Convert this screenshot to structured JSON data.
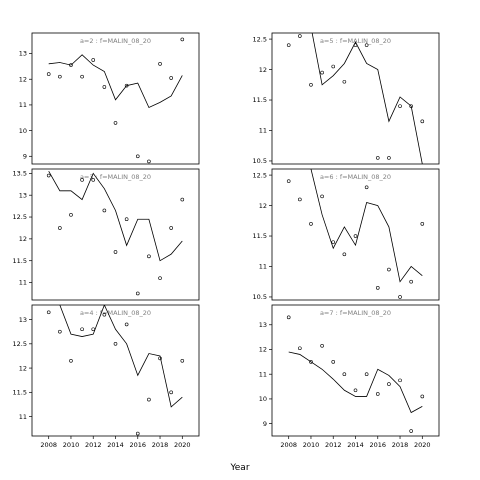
{
  "chart_data": {
    "type": "scatter",
    "xlabel": "Year",
    "ylabel": "",
    "xlim": [
      2006.5,
      2021.5
    ],
    "x_ticks": [
      2008,
      2010,
      2012,
      2014,
      2016,
      2018,
      2020
    ],
    "style": {
      "point_color": "#000000",
      "line_color": "#000000",
      "strip_text_color": "#808080",
      "background": "#ffffff"
    },
    "panels": [
      {
        "id": "a2",
        "label": "a=2 : f=MALIN_08_20",
        "ylim": [
          8.7,
          13.8
        ],
        "y_ticks": [
          9,
          10,
          11,
          12,
          13
        ],
        "show_x_ticks": false,
        "points": [
          [
            2008,
            12.2
          ],
          [
            2009,
            12.1
          ],
          [
            2010,
            12.55
          ],
          [
            2011,
            12.1
          ],
          [
            2012,
            12.75
          ],
          [
            2013,
            11.7
          ],
          [
            2014,
            10.3
          ],
          [
            2015,
            11.75
          ],
          [
            2016,
            9.0
          ],
          [
            2017,
            8.8
          ],
          [
            2018,
            12.6
          ],
          [
            2019,
            12.05
          ],
          [
            2020,
            13.55
          ]
        ],
        "line": [
          [
            2008,
            12.6
          ],
          [
            2009,
            12.65
          ],
          [
            2010,
            12.55
          ],
          [
            2011,
            12.95
          ],
          [
            2012,
            12.55
          ],
          [
            2013,
            12.3
          ],
          [
            2014,
            11.2
          ],
          [
            2015,
            11.75
          ],
          [
            2016,
            11.85
          ],
          [
            2017,
            10.9
          ],
          [
            2018,
            11.1
          ],
          [
            2019,
            11.35
          ],
          [
            2020,
            12.15
          ]
        ]
      },
      {
        "id": "a5",
        "label": "a=5 : f=MALIN_08_20",
        "ylim": [
          10.45,
          12.6
        ],
        "y_ticks": [
          10.5,
          11.0,
          11.5,
          12.0,
          12.5
        ],
        "show_x_ticks": false,
        "points": [
          [
            2008,
            12.4
          ],
          [
            2009,
            12.55
          ],
          [
            2010,
            11.75
          ],
          [
            2011,
            11.95
          ],
          [
            2012,
            12.05
          ],
          [
            2013,
            11.8
          ],
          [
            2014,
            12.4
          ],
          [
            2015,
            12.4
          ],
          [
            2016,
            10.55
          ],
          [
            2017,
            10.55
          ],
          [
            2018,
            11.4
          ],
          [
            2019,
            11.4
          ],
          [
            2020,
            11.15
          ]
        ],
        "line": [
          [
            2010,
            12.7
          ],
          [
            2011,
            11.75
          ],
          [
            2012,
            11.9
          ],
          [
            2013,
            12.1
          ],
          [
            2014,
            12.45
          ],
          [
            2015,
            12.1
          ],
          [
            2016,
            12.0
          ],
          [
            2017,
            11.15
          ],
          [
            2018,
            11.55
          ],
          [
            2019,
            11.4
          ],
          [
            2020,
            10.45
          ]
        ]
      },
      {
        "id": "a3",
        "label": "a=3 : f=MALIN_08_20",
        "ylim": [
          10.6,
          13.6
        ],
        "y_ticks": [
          11.0,
          11.5,
          12.0,
          12.5,
          13.0,
          13.5
        ],
        "show_x_ticks": false,
        "points": [
          [
            2008,
            13.45
          ],
          [
            2009,
            12.25
          ],
          [
            2010,
            12.55
          ],
          [
            2011,
            13.35
          ],
          [
            2012,
            13.35
          ],
          [
            2013,
            12.65
          ],
          [
            2014,
            11.7
          ],
          [
            2015,
            12.45
          ],
          [
            2016,
            10.75
          ],
          [
            2017,
            11.6
          ],
          [
            2018,
            11.1
          ],
          [
            2019,
            12.25
          ],
          [
            2020,
            12.9
          ]
        ],
        "line": [
          [
            2008,
            13.55
          ],
          [
            2009,
            13.1
          ],
          [
            2010,
            13.1
          ],
          [
            2011,
            12.9
          ],
          [
            2012,
            13.5
          ],
          [
            2013,
            13.15
          ],
          [
            2014,
            12.65
          ],
          [
            2015,
            11.85
          ],
          [
            2016,
            12.45
          ],
          [
            2017,
            12.45
          ],
          [
            2018,
            11.5
          ],
          [
            2019,
            11.65
          ],
          [
            2020,
            11.95
          ]
        ]
      },
      {
        "id": "a6",
        "label": "a=6 : f=MALIN_08_20",
        "ylim": [
          10.45,
          12.6
        ],
        "y_ticks": [
          10.5,
          11.0,
          11.5,
          12.0,
          12.5
        ],
        "show_x_ticks": false,
        "points": [
          [
            2008,
            12.4
          ],
          [
            2009,
            12.1
          ],
          [
            2010,
            11.7
          ],
          [
            2011,
            12.15
          ],
          [
            2012,
            11.4
          ],
          [
            2013,
            11.2
          ],
          [
            2014,
            11.5
          ],
          [
            2015,
            12.3
          ],
          [
            2016,
            10.65
          ],
          [
            2017,
            10.95
          ],
          [
            2018,
            10.5
          ],
          [
            2019,
            10.75
          ],
          [
            2020,
            11.7
          ]
        ],
        "line": [
          [
            2010,
            12.6
          ],
          [
            2011,
            11.85
          ],
          [
            2012,
            11.3
          ],
          [
            2013,
            11.65
          ],
          [
            2014,
            11.35
          ],
          [
            2015,
            12.05
          ],
          [
            2016,
            12.0
          ],
          [
            2017,
            11.65
          ],
          [
            2018,
            10.75
          ],
          [
            2019,
            11.0
          ],
          [
            2020,
            10.85
          ]
        ]
      },
      {
        "id": "a4",
        "label": "a=4 : f=MALIN_08_20",
        "ylim": [
          10.6,
          13.3
        ],
        "y_ticks": [
          11.0,
          11.5,
          12.0,
          12.5,
          13.0
        ],
        "show_x_ticks": true,
        "points": [
          [
            2008,
            13.15
          ],
          [
            2009,
            12.75
          ],
          [
            2010,
            12.15
          ],
          [
            2011,
            12.8
          ],
          [
            2012,
            12.8
          ],
          [
            2013,
            13.1
          ],
          [
            2014,
            12.5
          ],
          [
            2015,
            12.9
          ],
          [
            2016,
            10.65
          ],
          [
            2017,
            11.35
          ],
          [
            2018,
            12.2
          ],
          [
            2019,
            11.5
          ],
          [
            2020,
            12.15
          ]
        ],
        "line": [
          [
            2009,
            13.3
          ],
          [
            2010,
            12.7
          ],
          [
            2011,
            12.65
          ],
          [
            2012,
            12.7
          ],
          [
            2013,
            13.3
          ],
          [
            2014,
            12.8
          ],
          [
            2015,
            12.5
          ],
          [
            2016,
            11.85
          ],
          [
            2017,
            12.3
          ],
          [
            2018,
            12.25
          ],
          [
            2019,
            11.2
          ],
          [
            2020,
            11.4
          ]
        ]
      },
      {
        "id": "a7",
        "label": "a=7 : f=MALIN_08_20",
        "ylim": [
          8.5,
          13.8
        ],
        "y_ticks": [
          9,
          10,
          11,
          12,
          13
        ],
        "show_x_ticks": true,
        "points": [
          [
            2008,
            13.3
          ],
          [
            2009,
            12.05
          ],
          [
            2010,
            11.5
          ],
          [
            2011,
            12.15
          ],
          [
            2012,
            11.5
          ],
          [
            2013,
            11.0
          ],
          [
            2014,
            10.35
          ],
          [
            2015,
            11.0
          ],
          [
            2016,
            10.2
          ],
          [
            2017,
            10.6
          ],
          [
            2018,
            10.75
          ],
          [
            2019,
            8.7
          ],
          [
            2020,
            10.1
          ]
        ],
        "line": [
          [
            2008,
            11.9
          ],
          [
            2009,
            11.8
          ],
          [
            2010,
            11.5
          ],
          [
            2011,
            11.2
          ],
          [
            2012,
            10.8
          ],
          [
            2013,
            10.35
          ],
          [
            2014,
            10.1
          ],
          [
            2015,
            10.1
          ],
          [
            2016,
            11.2
          ],
          [
            2017,
            10.95
          ],
          [
            2018,
            10.5
          ],
          [
            2019,
            9.45
          ],
          [
            2020,
            9.7
          ]
        ]
      }
    ]
  }
}
